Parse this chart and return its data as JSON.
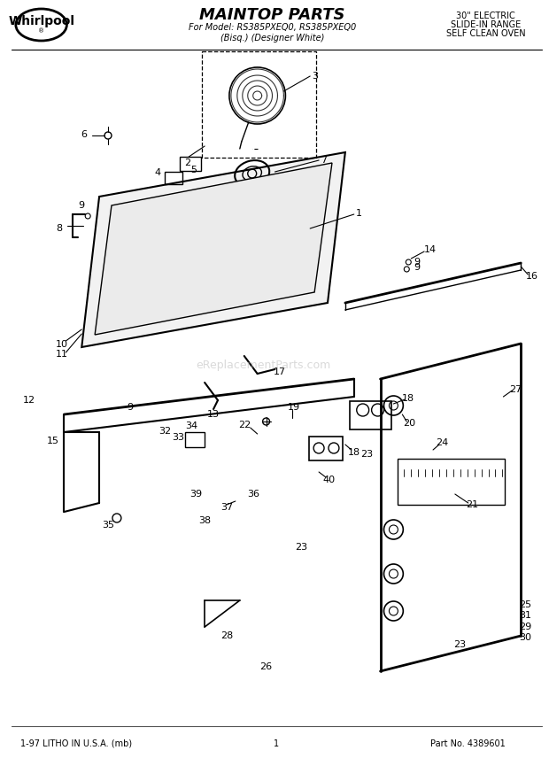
{
  "title": "MAINTOP PARTS",
  "subtitle1": "For Model: RS385PXEQ0, RS385PXEQ0",
  "subtitle2": "(Bisq.) (Designer White)",
  "top_right_line1": "30\" ELECTRIC",
  "top_right_line2": "SLIDE-IN RANGE",
  "top_right_line3": "SELF CLEAN OVEN",
  "bottom_left": "1-97 LITHO IN U.S.A. (mb)",
  "bottom_center": "1",
  "bottom_right": "Part No. 4389601",
  "watermark": "eReplacementParts.com",
  "bg_color": "#ffffff",
  "line_color": "#000000",
  "light_gray": "#888888",
  "dark_gray": "#333333",
  "watermark_color": "#bbbbbb"
}
